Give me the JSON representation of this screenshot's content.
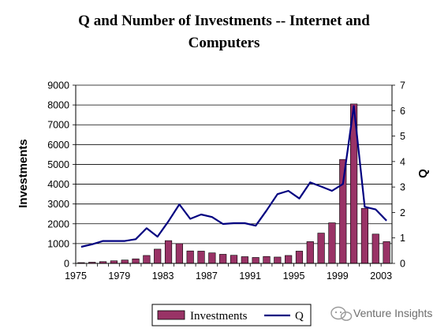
{
  "chart_data": {
    "type": "bar",
    "title": "Q and Number of Investments -- Internet and Computers",
    "title_lines": [
      "Q and Number of Investments -- Internet and",
      "Computers"
    ],
    "x": [
      1975,
      1976,
      1977,
      1978,
      1979,
      1980,
      1981,
      1982,
      1983,
      1984,
      1985,
      1986,
      1987,
      1988,
      1989,
      1990,
      1991,
      1992,
      1993,
      1994,
      1995,
      1996,
      1997,
      1998,
      1999,
      2000,
      2001,
      2002,
      2003
    ],
    "xticks": [
      "1975",
      "1979",
      "1983",
      "1987",
      "1991",
      "1995",
      "1999",
      "2003"
    ],
    "xlim": [
      1975,
      2003
    ],
    "ylabel": "Investments",
    "ylim": [
      0,
      9000
    ],
    "yticks": [
      "0",
      "1000",
      "2000",
      "3000",
      "4000",
      "5000",
      "6000",
      "7000",
      "8000",
      "9000"
    ],
    "y2label": "Q",
    "y2lim": [
      0,
      7
    ],
    "y2ticks": [
      "0",
      "1",
      "2",
      "3",
      "4",
      "5",
      "6",
      "7"
    ],
    "grid": true,
    "legend_position": "bottom-center",
    "series": [
      {
        "name": "Investments",
        "type": "bar",
        "axis": "left",
        "color": "#993366",
        "values": [
          40,
          60,
          90,
          130,
          170,
          230,
          400,
          720,
          1150,
          1000,
          630,
          620,
          530,
          460,
          410,
          340,
          300,
          350,
          320,
          400,
          620,
          1100,
          1530,
          2050,
          5250,
          8050,
          2780,
          1480,
          1100
        ]
      },
      {
        "name": "Q",
        "type": "line",
        "axis": "right",
        "color": "#000080",
        "values": [
          0.65,
          0.75,
          0.88,
          0.88,
          0.88,
          0.95,
          1.38,
          1.05,
          1.65,
          2.32,
          1.75,
          1.92,
          1.82,
          1.55,
          1.58,
          1.58,
          1.48,
          2.08,
          2.72,
          2.85,
          2.55,
          3.18,
          3.02,
          2.85,
          3.12,
          6.18,
          2.22,
          2.12,
          1.68
        ]
      }
    ]
  },
  "watermark": "Venture Insights"
}
